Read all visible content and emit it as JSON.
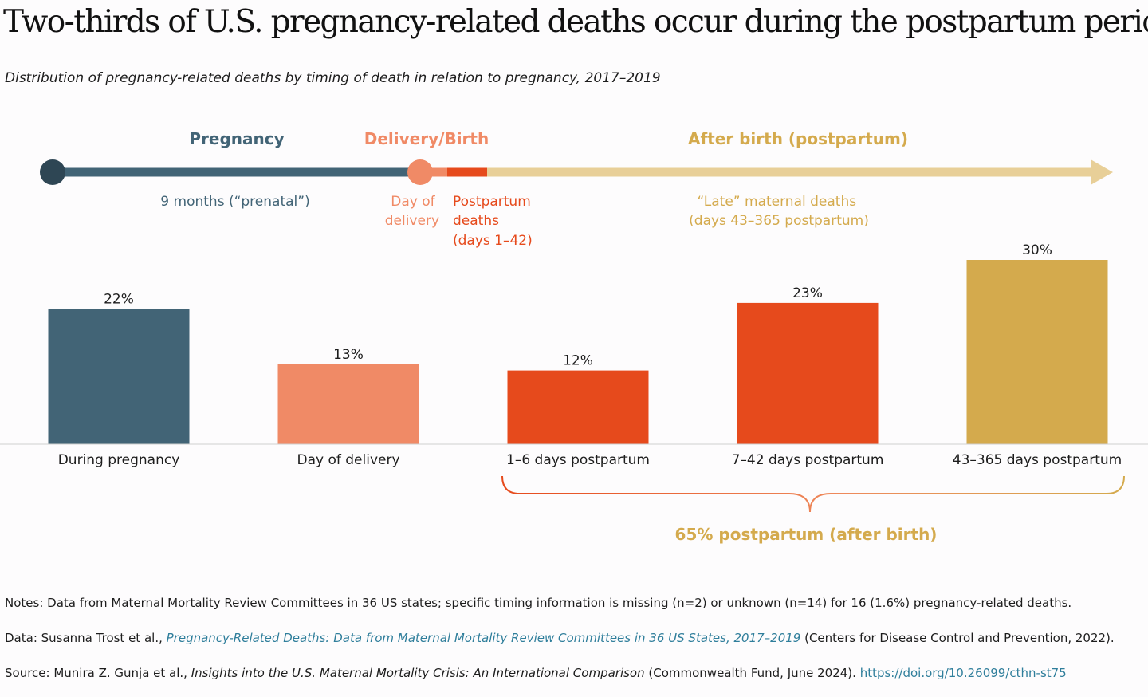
{
  "title": "Two-thirds of U.S. pregnancy-related deaths occur during the postpartum period.",
  "subtitle": "Distribution of pregnancy-related deaths by timing of death in relation to pregnancy, 2017–2019",
  "colors": {
    "pregnancy": "#426476",
    "delivery": "#f08a66",
    "early_postpartum": "#e64a1c",
    "late_postpartum": "#d4aa4d",
    "timeline_late": "#e8cf98",
    "postpartum_label": "#d4aa4d"
  },
  "timeline": {
    "phase_labels": {
      "pregnancy": "Pregnancy",
      "delivery": "Delivery/Birth",
      "after_birth": "After birth (postpartum)"
    },
    "prenatal_label": "9 months (“prenatal”)",
    "day_of_delivery_lines": [
      "Day of",
      "delivery"
    ],
    "postpartum_deaths_lines": [
      "Postpartum",
      "deaths",
      "(days 1–42)"
    ],
    "late_deaths_lines": [
      "“Late” maternal deaths",
      "(days 43–365 postpartum)"
    ]
  },
  "chart_data": {
    "type": "bar",
    "title": "Distribution of pregnancy-related deaths by timing of death in relation to pregnancy, 2017–2019",
    "categories": [
      "During pregnancy",
      "Day of delivery",
      "1–6 days postpartum",
      "7–42 days postpartum",
      "43–365 days postpartum"
    ],
    "values": [
      22,
      13,
      12,
      23,
      30
    ],
    "value_labels": [
      "22%",
      "13%",
      "12%",
      "23%",
      "30%"
    ],
    "bar_colors": [
      "#426476",
      "#f08a66",
      "#e64a1c",
      "#e64a1c",
      "#d4aa4d"
    ],
    "ylim": [
      0,
      30
    ],
    "grid": false,
    "xlabel": "",
    "ylabel": "",
    "annotation": "65% postpartum (after birth)"
  },
  "notes": {
    "notes_line": "Notes: Data from Maternal Mortality Review Committees in 36 US states; specific timing information is missing (n=2) or unknown (n=14) for 16 (1.6%) pregnancy-related deaths.",
    "data_prefix": "Data: Susanna Trost et al., ",
    "data_title": "Pregnancy-Related Deaths: Data from Maternal Mortality Review Committees in 36 US States, 2017–2019",
    "data_suffix": " (Centers for Disease Control and Prevention, 2022).",
    "source_prefix": "Source: Munira Z. Gunja et al., ",
    "source_title": "Insights into the U.S. Maternal Mortality Crisis: An International Comparison",
    "source_suffix": " (Commonwealth Fund, June 2024). ",
    "source_url": "https://doi.org/10.26099/cthn-st75"
  }
}
